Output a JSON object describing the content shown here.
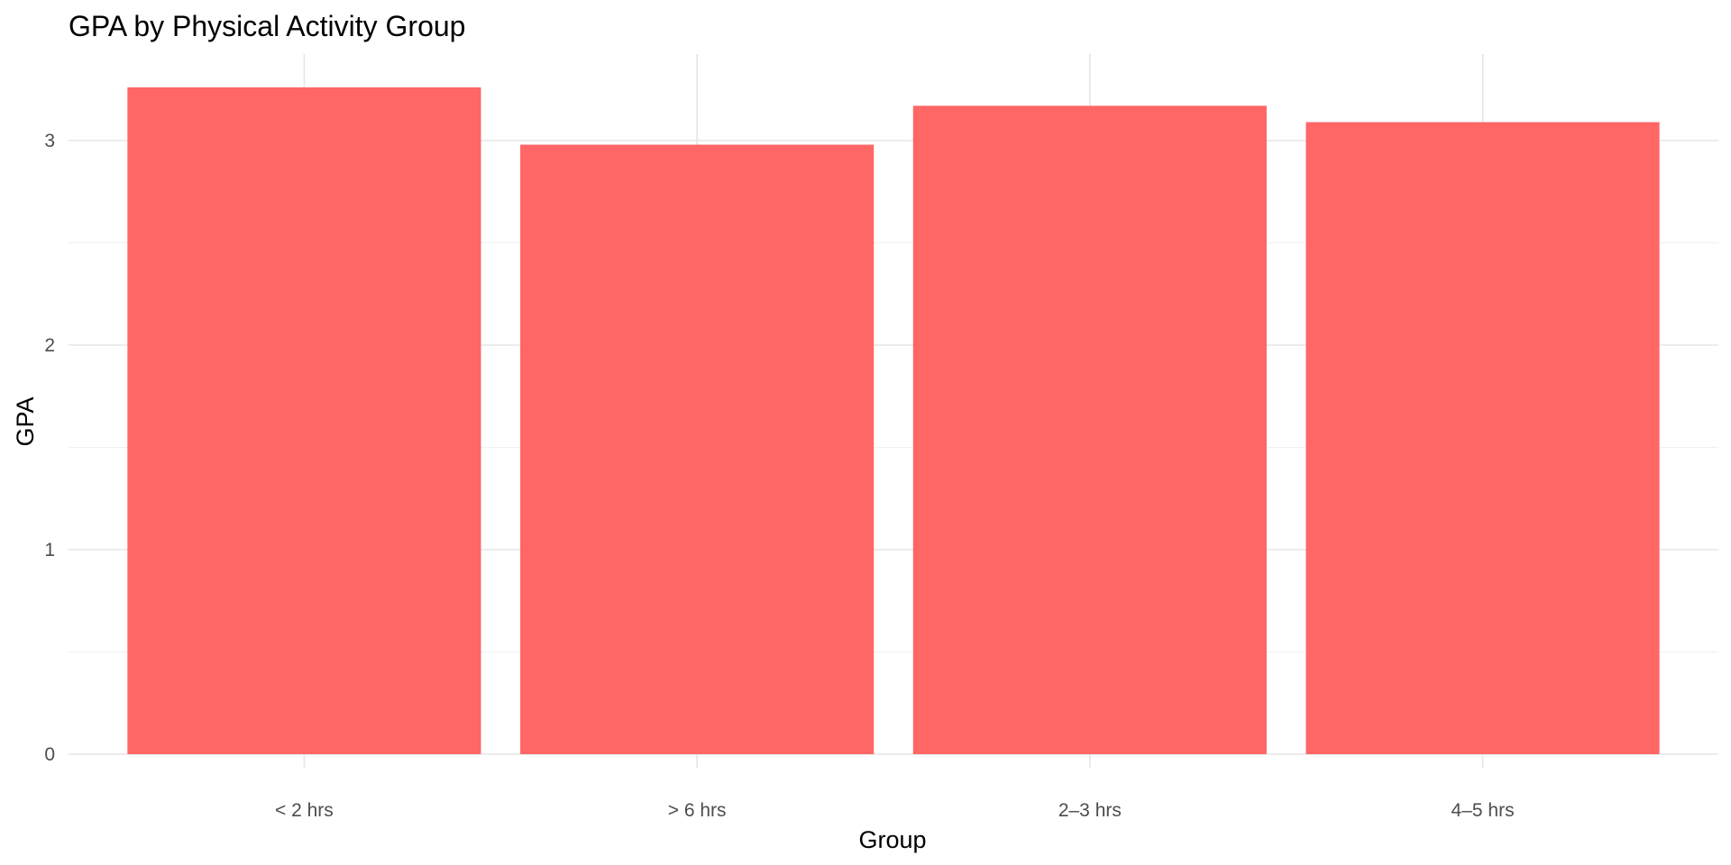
{
  "chart_data": {
    "type": "bar",
    "title": "GPA by Physical Activity Group",
    "xlabel": "Group",
    "ylabel": "GPA",
    "categories": [
      "< 2 hrs",
      "> 6 hrs",
      "2–3 hrs",
      "4–5 hrs"
    ],
    "values": [
      3.26,
      2.98,
      3.17,
      3.09
    ],
    "yticks": [
      0,
      1,
      2,
      3
    ],
    "ylim": [
      0,
      3.4
    ],
    "grid": true,
    "legend": "none",
    "bar_color": "#FF6666"
  }
}
